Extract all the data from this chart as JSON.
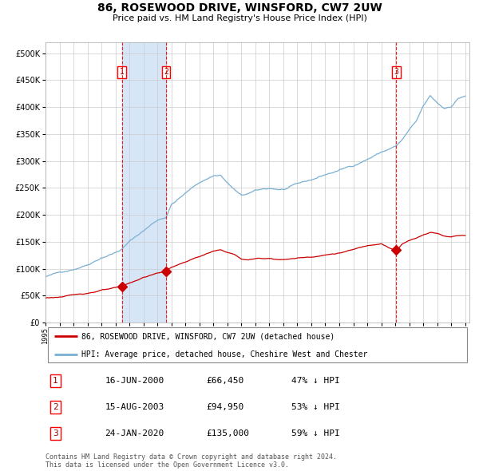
{
  "title": "86, ROSEWOOD DRIVE, WINSFORD, CW7 2UW",
  "subtitle": "Price paid vs. HM Land Registry's House Price Index (HPI)",
  "title_fontsize": 10,
  "subtitle_fontsize": 8,
  "background_color": "#ffffff",
  "plot_bg_color": "#ffffff",
  "grid_color": "#cccccc",
  "hpi_line_color": "#7ab0d4",
  "price_line_color": "#cc0000",
  "ylim": [
    0,
    520000
  ],
  "yticks": [
    0,
    50000,
    100000,
    150000,
    200000,
    250000,
    300000,
    350000,
    400000,
    450000,
    500000
  ],
  "ytick_labels": [
    "£0",
    "£50K",
    "£100K",
    "£150K",
    "£200K",
    "£250K",
    "£300K",
    "£350K",
    "£400K",
    "£450K",
    "£500K"
  ],
  "sale_dates_num": [
    2000.46,
    2003.62,
    2020.07
  ],
  "sale_prices": [
    66450,
    94950,
    135000
  ],
  "sale_labels": [
    "1",
    "2",
    "3"
  ],
  "shaded_region": [
    2000.46,
    2003.62
  ],
  "legend_line1": "86, ROSEWOOD DRIVE, WINSFORD, CW7 2UW (detached house)",
  "legend_line2": "HPI: Average price, detached house, Cheshire West and Chester",
  "table_data": [
    [
      "1",
      "16-JUN-2000",
      "£66,450",
      "47% ↓ HPI"
    ],
    [
      "2",
      "15-AUG-2003",
      "£94,950",
      "53% ↓ HPI"
    ],
    [
      "3",
      "24-JAN-2020",
      "£135,000",
      "59% ↓ HPI"
    ]
  ],
  "footer": "Contains HM Land Registry data © Crown copyright and database right 2024.\nThis data is licensed under the Open Government Licence v3.0."
}
